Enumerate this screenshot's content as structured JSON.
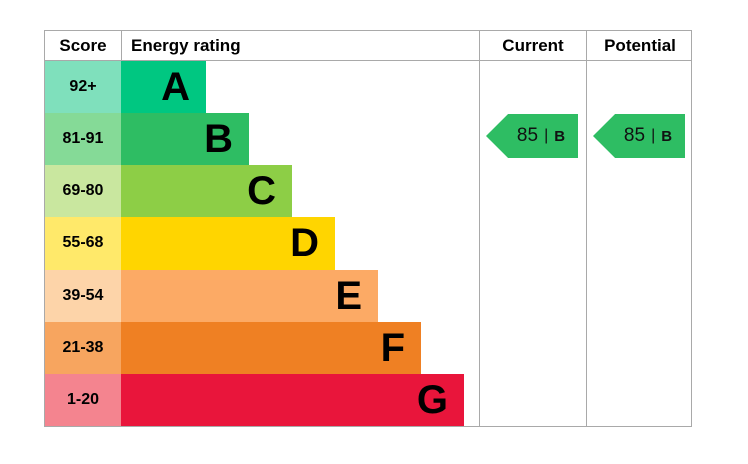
{
  "header": {
    "score": "Score",
    "energy_rating": "Energy rating",
    "current": "Current",
    "potential": "Potential"
  },
  "bands": [
    {
      "score": "92+",
      "letter": "A",
      "bar_color": "#00c781",
      "score_bg": "#7fe0bc"
    },
    {
      "score": "81-91",
      "letter": "B",
      "bar_color": "#2ebd63",
      "score_bg": "#85da97"
    },
    {
      "score": "69-80",
      "letter": "C",
      "bar_color": "#8dce46",
      "score_bg": "#c9e79f"
    },
    {
      "score": "55-68",
      "letter": "D",
      "bar_color": "#ffd500",
      "score_bg": "#ffe96a"
    },
    {
      "score": "39-54",
      "letter": "E",
      "bar_color": "#fcaa65",
      "score_bg": "#fdd4a9"
    },
    {
      "score": "21-38",
      "letter": "F",
      "bar_color": "#ef8023",
      "score_bg": "#f7a55f"
    },
    {
      "score": "1-20",
      "letter": "G",
      "bar_color": "#e9153b",
      "score_bg": "#f4848f"
    }
  ],
  "current": {
    "value": "85",
    "separator": "|",
    "letter": "B",
    "arrow_color": "#2ebd63"
  },
  "potential": {
    "value": "85",
    "separator": "|",
    "letter": "B",
    "arrow_color": "#2ebd63"
  },
  "chart_data": {
    "type": "bar",
    "title": "Energy rating",
    "categories": [
      "A",
      "B",
      "C",
      "D",
      "E",
      "F",
      "G"
    ],
    "band_ranges": [
      "92+",
      "81-91",
      "69-80",
      "55-68",
      "39-54",
      "21-38",
      "1-20"
    ],
    "columns": [
      "Score",
      "Energy rating",
      "Current",
      "Potential"
    ],
    "series": [
      {
        "name": "Current",
        "value": 85,
        "band": "B"
      },
      {
        "name": "Potential",
        "value": 85,
        "band": "B"
      }
    ],
    "scale": [
      1,
      100
    ],
    "legend_position": "none",
    "grid": false
  }
}
